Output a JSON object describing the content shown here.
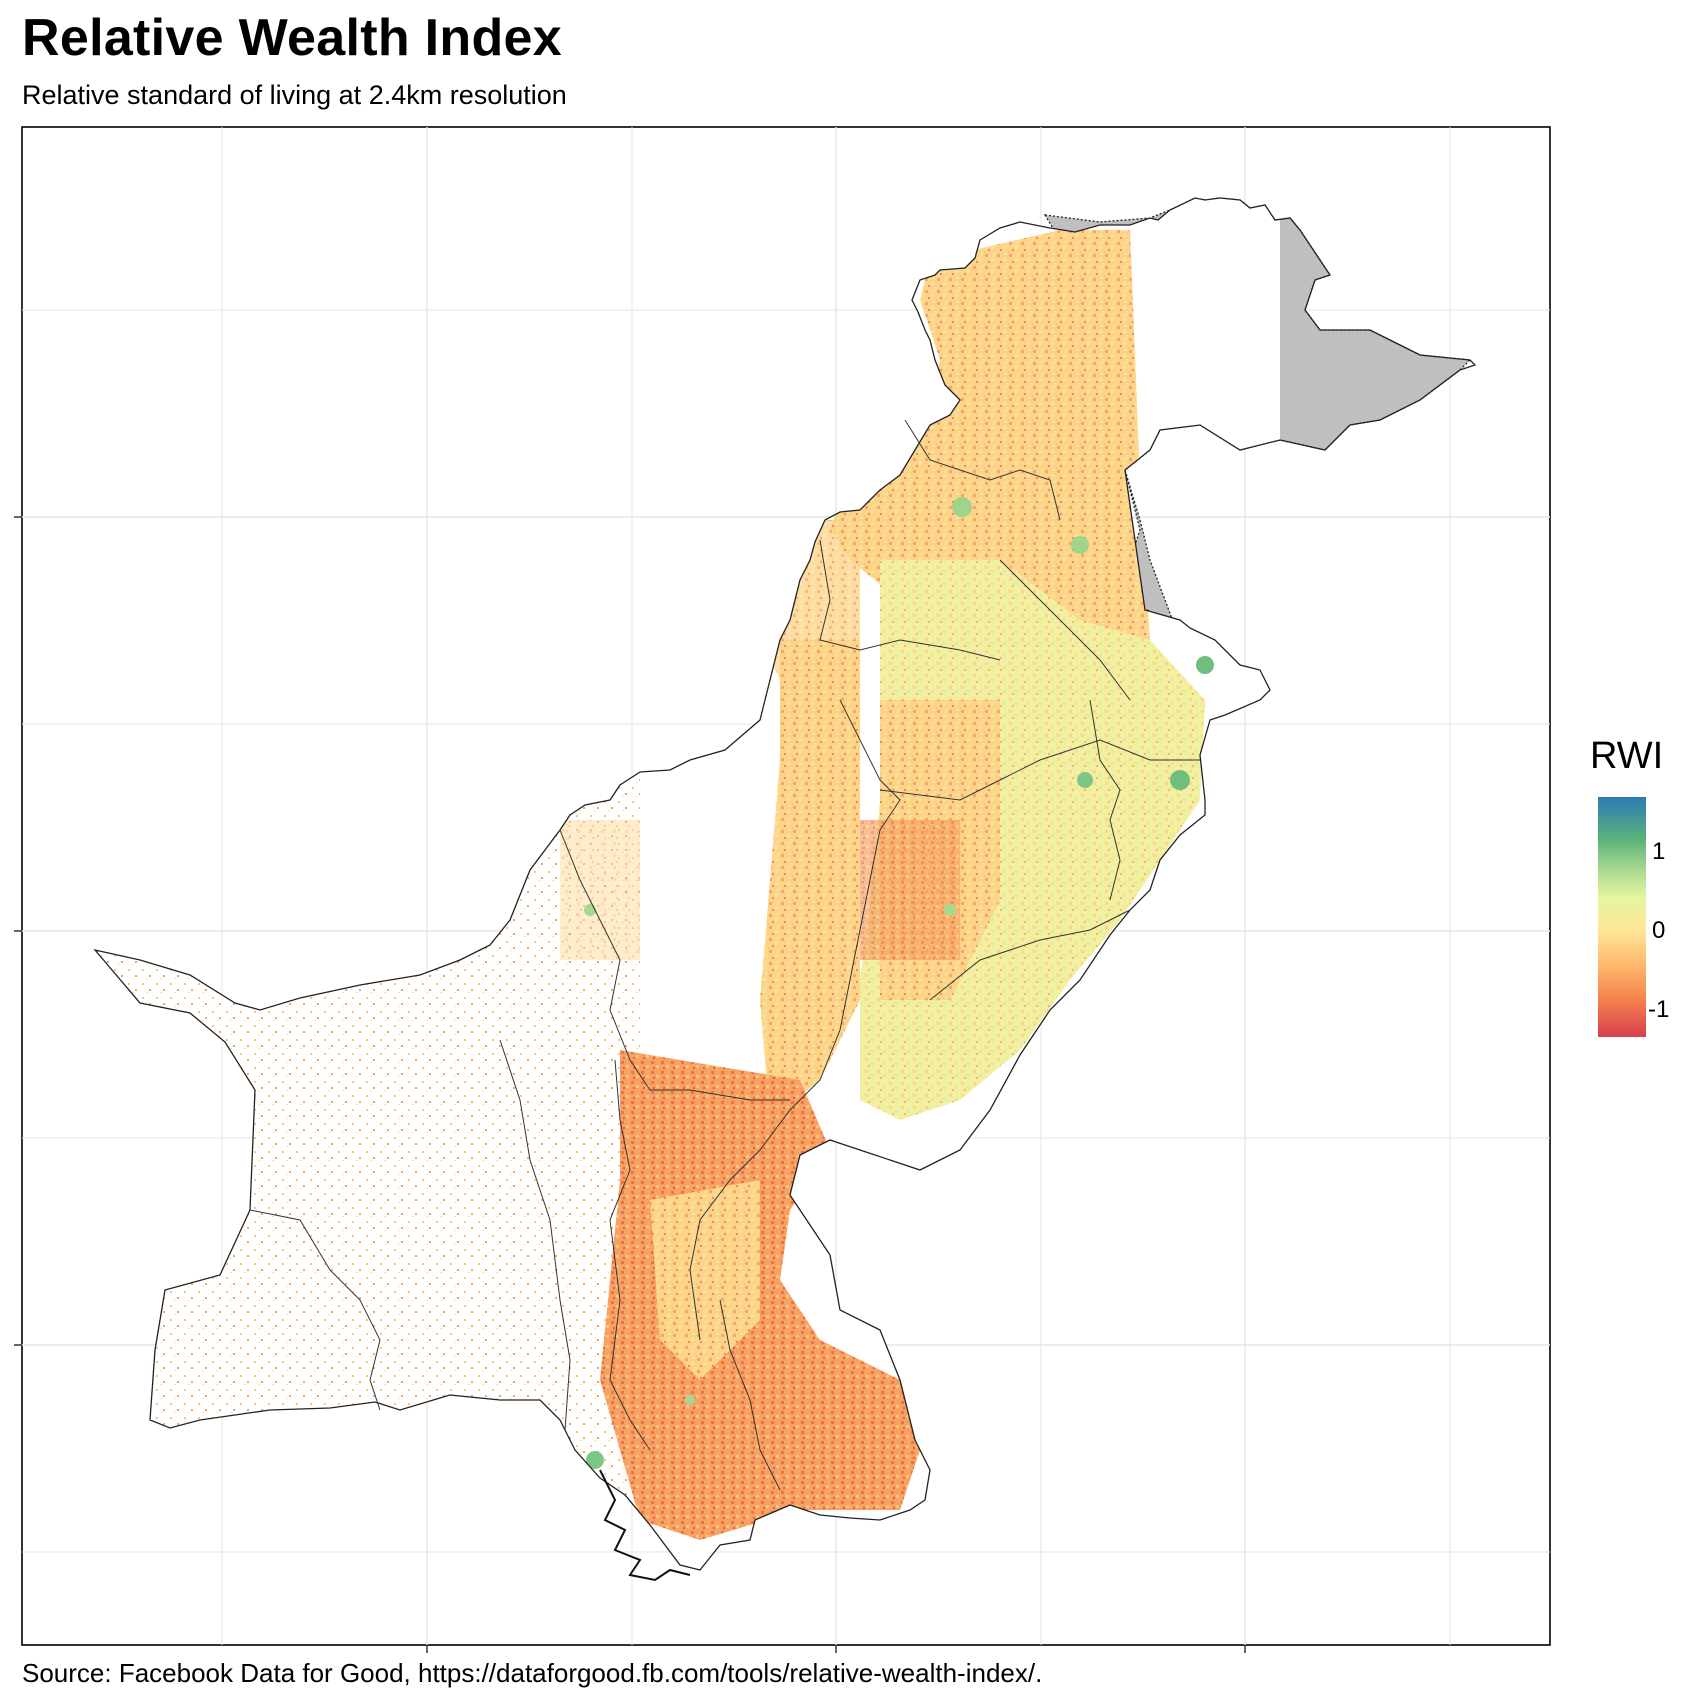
{
  "title": "Relative Wealth Index",
  "subtitle": "Relative standard of living at 2.4km resolution",
  "caption": "Source: Facebook Data for Good, https://dataforgood.fb.com/tools/relative-wealth-index/.",
  "legend": {
    "title": "RWI",
    "ticks": [
      {
        "value": 1,
        "label": "1"
      },
      {
        "value": 0,
        "label": "0"
      },
      {
        "value": -1,
        "label": "-1"
      }
    ],
    "range": [
      -1.4,
      1.8
    ],
    "colors": [
      "#d53e4f",
      "#f4804c",
      "#fdb96b",
      "#fee79a",
      "#e6f59f",
      "#a7d88f",
      "#5db37a",
      "#2b7bb4"
    ]
  },
  "map": {
    "country": "Pakistan",
    "disputed_region_color": "#bfbfbf",
    "grid": true
  }
}
